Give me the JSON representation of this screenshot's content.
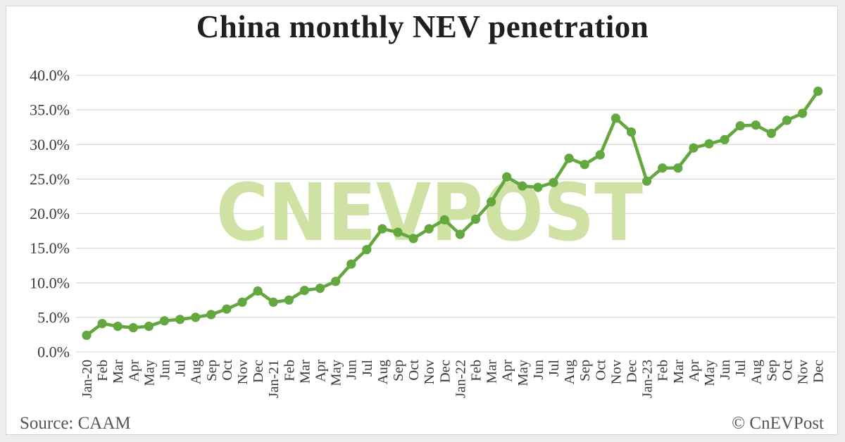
{
  "title": "China monthly NEV penetration",
  "watermark": "CNEVPOST",
  "footer": {
    "source": "Source: CAAM",
    "credit": "© CnEVPost"
  },
  "colors": {
    "line": "#63a83f",
    "marker": "#63a83f",
    "watermark": "#cfe2a3",
    "gridline": "#d9d9d9",
    "axis_text": "#3a3a3a",
    "title_text": "#1f1f1f",
    "footer_text": "#555555",
    "card_bg": "#ffffff",
    "page_bg": "#ededee"
  },
  "chart_data": {
    "type": "line",
    "title": "China monthly NEV penetration",
    "series_name": "NEV penetration",
    "x_labels": [
      "Jan-20",
      "Feb",
      "Mar",
      "Apr",
      "May",
      "Jun",
      "Jul",
      "Aug",
      "Sep",
      "Oct",
      "Nov",
      "Dec",
      "Jan-21",
      "Feb",
      "Mar",
      "Apr",
      "May",
      "Jun",
      "Jul",
      "Aug",
      "Sep",
      "Oct",
      "Nov",
      "Dec",
      "Jan-22",
      "Feb",
      "Mar",
      "Apr",
      "May",
      "Jun",
      "Jul",
      "Aug",
      "Sep",
      "Oct",
      "Nov",
      "Dec",
      "Jan-23",
      "Feb",
      "Mar",
      "Apr",
      "May",
      "Jun",
      "Jul",
      "Aug",
      "Sep",
      "Oct",
      "Nov",
      "Dec"
    ],
    "values": [
      2.4,
      4.1,
      3.7,
      3.5,
      3.7,
      4.5,
      4.7,
      5.0,
      5.4,
      6.2,
      7.2,
      8.8,
      7.2,
      7.5,
      8.9,
      9.2,
      10.2,
      12.7,
      14.8,
      17.8,
      17.3,
      16.4,
      17.8,
      19.1,
      17.0,
      19.2,
      21.7,
      25.3,
      24.0,
      23.8,
      24.5,
      28.0,
      27.1,
      28.5,
      33.8,
      31.8,
      24.7,
      26.6,
      26.6,
      29.5,
      30.1,
      30.7,
      32.7,
      32.8,
      31.6,
      33.5,
      34.5,
      37.7
    ],
    "y_ticks": [
      "0.0%",
      "5.0%",
      "10.0%",
      "15.0%",
      "20.0%",
      "25.0%",
      "30.0%",
      "35.0%",
      "40.0%"
    ],
    "ylim": [
      0,
      40
    ],
    "y_tick_step": 5,
    "grid": "horizontal",
    "legend": "none",
    "source": "CAAM"
  }
}
